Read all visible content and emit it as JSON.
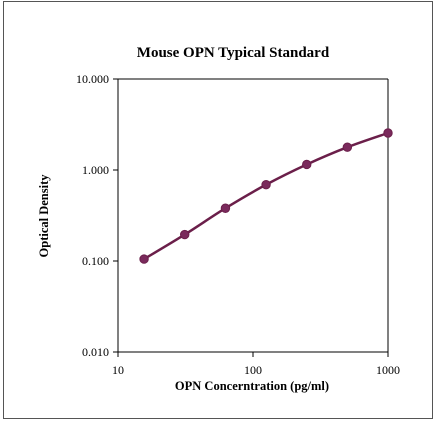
{
  "chart_data": {
    "type": "line",
    "title": "Mouse OPN Typical Standard",
    "xlabel": "OPN Concerntration (pg/ml)",
    "ylabel": "Optical Density",
    "x_scale": "log",
    "y_scale": "log",
    "xlim": [
      10,
      1000
    ],
    "ylim": [
      0.01,
      10
    ],
    "x_ticks": [
      10,
      100,
      1000
    ],
    "x_tick_labels": [
      "10",
      "100",
      "1000"
    ],
    "y_ticks": [
      0.01,
      0.1,
      1,
      10
    ],
    "y_tick_labels": [
      "0.010",
      "0.100",
      "1.000",
      "10.000"
    ],
    "grid": false,
    "series": [
      {
        "color": "#6b1f4a",
        "marker_color": "#7a2a5c",
        "x": [
          15.6,
          31.2,
          62.5,
          125,
          250,
          500,
          1000
        ],
        "y": [
          0.105,
          0.195,
          0.38,
          0.69,
          1.15,
          1.78,
          2.55
        ]
      }
    ]
  }
}
